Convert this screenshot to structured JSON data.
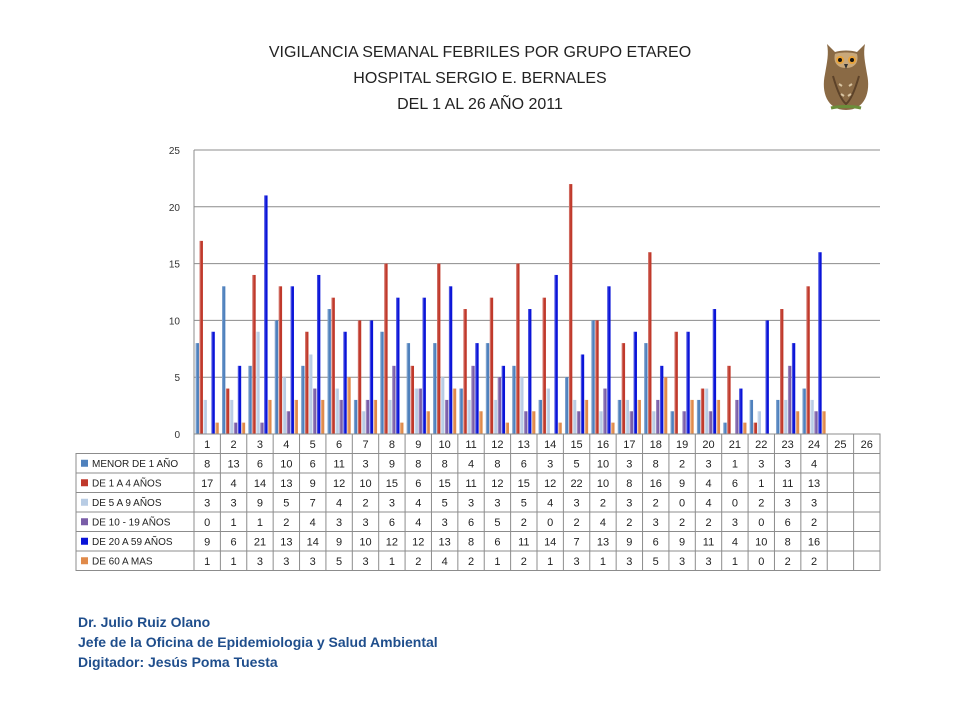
{
  "header": {
    "line1": "VIGILANCIA SEMANAL FEBRILES POR GRUPO ETAREO",
    "line2": "HOSPITAL SERGIO E. BERNALES",
    "line3": "DEL 1 AL 26 AÑO 2011"
  },
  "logo": {
    "icon": "owl-icon"
  },
  "credits": {
    "line1": "Dr.  Julio Ruiz Olano",
    "line2": "Jefe de la Oficina de Epidemiologia y  Salud Ambiental",
    "line3": "Digitador: Jesús Poma Tuesta"
  },
  "chart_data": {
    "type": "bar",
    "title": "",
    "xlabel": "",
    "ylabel": "",
    "ylim": [
      0,
      25
    ],
    "yticks": [
      0,
      5,
      10,
      15,
      20,
      25
    ],
    "grid": true,
    "legend": "data-table-below",
    "categories": [
      "1",
      "2",
      "3",
      "4",
      "5",
      "6",
      "7",
      "8",
      "9",
      "10",
      "11",
      "12",
      "13",
      "14",
      "15",
      "16",
      "17",
      "18",
      "19",
      "20",
      "21",
      "22",
      "23",
      "24",
      "25",
      "26"
    ],
    "series": [
      {
        "name": "MENOR DE 1 AÑO",
        "color": "#4f81bd",
        "values": [
          8,
          13,
          6,
          10,
          6,
          11,
          3,
          9,
          8,
          8,
          4,
          8,
          6,
          3,
          5,
          10,
          3,
          8,
          2,
          3,
          1,
          3,
          3,
          4,
          null,
          null
        ]
      },
      {
        "name": "DE 1 A 4 AÑOS",
        "color": "#c0392b",
        "values": [
          17,
          4,
          14,
          13,
          9,
          12,
          10,
          15,
          6,
          15,
          11,
          12,
          15,
          12,
          22,
          10,
          8,
          16,
          9,
          4,
          6,
          1,
          11,
          13,
          null,
          null
        ]
      },
      {
        "name": "DE 5 A 9 AÑOS",
        "color": "#b8cce4",
        "values": [
          3,
          3,
          9,
          5,
          7,
          4,
          2,
          3,
          4,
          5,
          3,
          3,
          5,
          4,
          3,
          2,
          3,
          2,
          0,
          4,
          0,
          2,
          3,
          3,
          null,
          null
        ]
      },
      {
        "name": "DE 10 - 19 AÑOS",
        "color": "#7a5ea8",
        "values": [
          0,
          1,
          1,
          2,
          4,
          3,
          3,
          6,
          4,
          3,
          6,
          5,
          2,
          0,
          2,
          4,
          2,
          3,
          2,
          2,
          3,
          0,
          6,
          2,
          null,
          null
        ]
      },
      {
        "name": "DE 20 A 59 AÑOS",
        "color": "#0a14d8",
        "values": [
          9,
          6,
          21,
          13,
          14,
          9,
          10,
          12,
          12,
          13,
          8,
          6,
          11,
          14,
          7,
          13,
          9,
          6,
          9,
          11,
          4,
          10,
          8,
          16,
          null,
          null
        ]
      },
      {
        "name": "DE 60 A  MAS",
        "color": "#e08a4a",
        "values": [
          1,
          1,
          3,
          3,
          3,
          5,
          3,
          1,
          2,
          4,
          2,
          1,
          2,
          1,
          3,
          1,
          3,
          5,
          3,
          3,
          1,
          0,
          2,
          2,
          null,
          null
        ]
      }
    ]
  }
}
